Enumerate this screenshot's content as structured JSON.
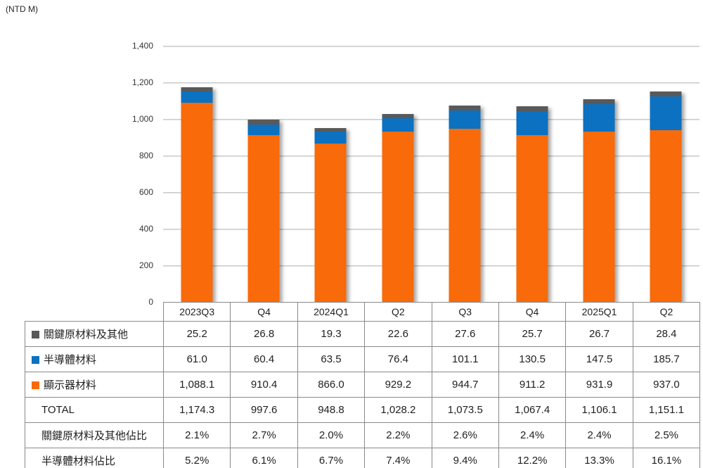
{
  "unit_label": "(NTD M)",
  "colors": {
    "key_materials_gray": "#595959",
    "semiconductor_blue": "#0C71C0",
    "display_orange": "#F96A0A",
    "gridline": "#C8C8C8",
    "table_border": "#898989"
  },
  "chart_data": {
    "type": "bar",
    "stacked": true,
    "title": "",
    "xlabel": "",
    "ylabel": "(NTD M)",
    "ylim": [
      0,
      1400
    ],
    "ytick_step": 200,
    "grid": true,
    "legend_position": "table-left",
    "categories": [
      "2023Q3",
      "Q4",
      "2024Q1",
      "Q2",
      "Q3",
      "Q4",
      "2025Q1",
      "Q2"
    ],
    "series": [
      {
        "name": "關鍵原材料及其他",
        "color": "#595959",
        "values": [
          25.2,
          26.8,
          19.3,
          22.6,
          27.6,
          25.7,
          26.7,
          28.4
        ]
      },
      {
        "name": "半導體材料",
        "color": "#0C71C0",
        "values": [
          61.0,
          60.4,
          63.5,
          76.4,
          101.1,
          130.5,
          147.5,
          185.7
        ]
      },
      {
        "name": "顯示器材料",
        "color": "#F96A0A",
        "values": [
          1088.1,
          910.4,
          866.0,
          929.2,
          944.7,
          911.2,
          931.9,
          937.0
        ]
      }
    ],
    "totals": [
      1174.3,
      997.6,
      948.8,
      1028.2,
      1073.5,
      1067.4,
      1106.1,
      1151.1
    ]
  },
  "table": {
    "rows": [
      {
        "label": "關鍵原材料及其他",
        "legend_color": "#595959",
        "values": [
          "25.2",
          "26.8",
          "19.3",
          "22.6",
          "27.6",
          "25.7",
          "26.7",
          "28.4"
        ]
      },
      {
        "label": "半導體材料",
        "legend_color": "#0C71C0",
        "values": [
          "61.0",
          "60.4",
          "63.5",
          "76.4",
          "101.1",
          "130.5",
          "147.5",
          "185.7"
        ]
      },
      {
        "label": "顯示器材料",
        "legend_color": "#F96A0A",
        "values": [
          "1,088.1",
          "910.4",
          "866.0",
          "929.2",
          "944.7",
          "911.2",
          "931.9",
          "937.0"
        ]
      },
      {
        "label": "TOTAL",
        "values": [
          "1,174.3",
          "997.6",
          "948.8",
          "1,028.2",
          "1,073.5",
          "1,067.4",
          "1,106.1",
          "1,151.1"
        ]
      },
      {
        "label": "關鍵原材料及其他佔比",
        "values": [
          "2.1%",
          "2.7%",
          "2.0%",
          "2.2%",
          "2.6%",
          "2.4%",
          "2.4%",
          "2.5%"
        ]
      },
      {
        "label": "半導體材料佔比",
        "values": [
          "5.2%",
          "6.1%",
          "6.7%",
          "7.4%",
          "9.4%",
          "12.2%",
          "13.3%",
          "16.1%"
        ]
      }
    ]
  }
}
